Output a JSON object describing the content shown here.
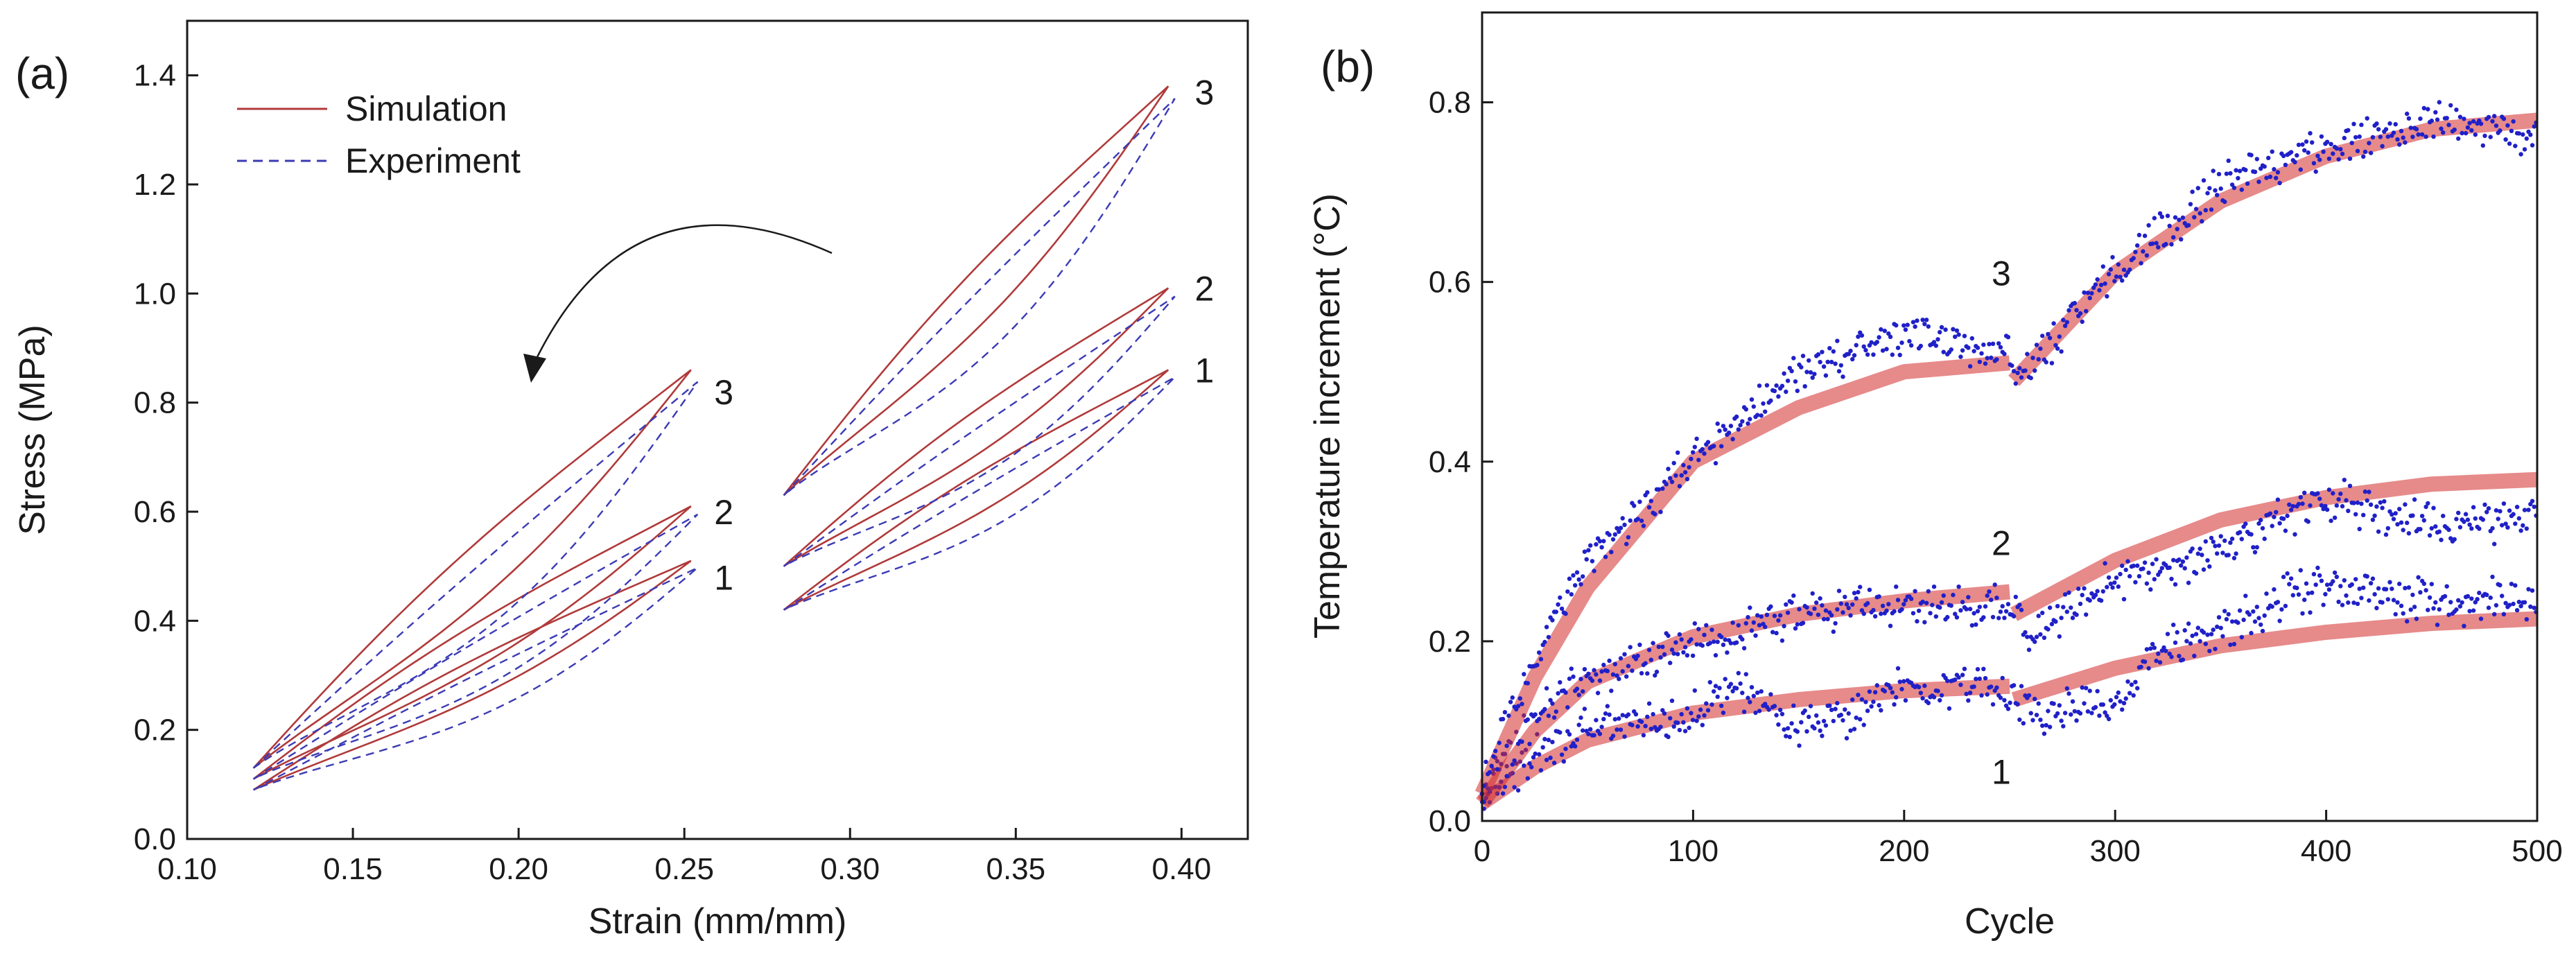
{
  "chart_data": [
    {
      "panel": "(a)",
      "type": "line",
      "xlabel": "Strain (mm/mm)",
      "ylabel": "Stress (MPa)",
      "xlim": [
        0.1,
        0.42
      ],
      "ylim": [
        0.0,
        1.5
      ],
      "xticks": [
        "0.10",
        "0.15",
        "0.20",
        "0.25",
        "0.30",
        "0.35",
        "0.40"
      ],
      "yticks": [
        "0.0",
        "0.2",
        "0.4",
        "0.6",
        "0.8",
        "1.0",
        "1.2",
        "1.4"
      ],
      "legend": {
        "placement": "top-left",
        "entries": [
          "Simulation",
          "Experiment"
        ]
      },
      "colors": {
        "Simulation": "#b03a3a",
        "Experiment": "#3b3bb5"
      },
      "annotations": [
        {
          "text": "3",
          "x": 0.259,
          "y": 0.82
        },
        {
          "text": "2",
          "x": 0.259,
          "y": 0.6
        },
        {
          "text": "1",
          "x": 0.259,
          "y": 0.48
        },
        {
          "text": "3",
          "x": 0.404,
          "y": 1.37
        },
        {
          "text": "2",
          "x": 0.404,
          "y": 1.01
        },
        {
          "text": "1",
          "x": 0.404,
          "y": 0.86
        }
      ],
      "loops": [
        {
          "label": "1",
          "group": "short",
          "x_min": 0.12,
          "x_max": 0.252,
          "y_min": 0.09,
          "y_max": 0.51
        },
        {
          "label": "2",
          "group": "short",
          "x_min": 0.12,
          "x_max": 0.252,
          "y_min": 0.11,
          "y_max": 0.61
        },
        {
          "label": "3",
          "group": "short",
          "x_min": 0.12,
          "x_max": 0.252,
          "y_min": 0.13,
          "y_max": 0.86
        },
        {
          "label": "1",
          "group": "long",
          "x_min": 0.28,
          "x_max": 0.396,
          "y_min": 0.42,
          "y_max": 0.86
        },
        {
          "label": "2",
          "group": "long",
          "x_min": 0.28,
          "x_max": 0.396,
          "y_min": 0.5,
          "y_max": 1.01
        },
        {
          "label": "3",
          "group": "long",
          "x_min": 0.28,
          "x_max": 0.396,
          "y_min": 0.63,
          "y_max": 1.38
        }
      ]
    },
    {
      "panel": "(b)",
      "type": "scatter",
      "xlabel": "Cycle",
      "ylabel": "Temperature increment (°C)",
      "xlim": [
        0,
        500
      ],
      "ylim": [
        0.0,
        0.9
      ],
      "xticks": [
        "0",
        "100",
        "200",
        "300",
        "400",
        "500"
      ],
      "yticks": [
        "0.0",
        "0.2",
        "0.4",
        "0.6",
        "0.8"
      ],
      "colors": {
        "fit": "#d42a2a",
        "data": "#2020c8"
      },
      "annotations": [
        {
          "text": "3",
          "x": 250,
          "y": 0.61
        },
        {
          "text": "2",
          "x": 250,
          "y": 0.31
        },
        {
          "text": "1",
          "x": 250,
          "y": 0.055
        }
      ],
      "series": [
        {
          "label": "1",
          "fit": [
            [
              0,
              0.02
            ],
            [
              25,
              0.06
            ],
            [
              50,
              0.09
            ],
            [
              100,
              0.12
            ],
            [
              150,
              0.135
            ],
            [
              200,
              0.145
            ],
            [
              250,
              0.15
            ],
            [
              252,
              0.135
            ],
            [
              300,
              0.17
            ],
            [
              350,
              0.195
            ],
            [
              400,
              0.21
            ],
            [
              450,
              0.22
            ],
            [
              500,
              0.225
            ]
          ],
          "data": [
            [
              0,
              0.03
            ],
            [
              25,
              0.07
            ],
            [
              50,
              0.1
            ],
            [
              100,
              0.12
            ],
            [
              120,
              0.15
            ],
            [
              150,
              0.1
            ],
            [
              180,
              0.12
            ],
            [
              200,
              0.15
            ],
            [
              230,
              0.15
            ],
            [
              250,
              0.14
            ],
            [
              260,
              0.12
            ],
            [
              300,
              0.13
            ],
            [
              320,
              0.19
            ],
            [
              350,
              0.21
            ],
            [
              380,
              0.25
            ],
            [
              400,
              0.26
            ],
            [
              430,
              0.25
            ],
            [
              460,
              0.24
            ],
            [
              500,
              0.25
            ]
          ]
        },
        {
          "label": "2",
          "fit": [
            [
              0,
              0.02
            ],
            [
              25,
              0.1
            ],
            [
              50,
              0.155
            ],
            [
              100,
              0.205
            ],
            [
              150,
              0.23
            ],
            [
              200,
              0.245
            ],
            [
              250,
              0.255
            ],
            [
              252,
              0.23
            ],
            [
              300,
              0.29
            ],
            [
              350,
              0.335
            ],
            [
              400,
              0.36
            ],
            [
              450,
              0.375
            ],
            [
              500,
              0.38
            ]
          ],
          "data": [
            [
              0,
              0.03
            ],
            [
              25,
              0.12
            ],
            [
              50,
              0.16
            ],
            [
              100,
              0.2
            ],
            [
              150,
              0.23
            ],
            [
              200,
              0.24
            ],
            [
              250,
              0.24
            ],
            [
              260,
              0.21
            ],
            [
              300,
              0.27
            ],
            [
              350,
              0.3
            ],
            [
              380,
              0.34
            ],
            [
              400,
              0.36
            ],
            [
              430,
              0.34
            ],
            [
              460,
              0.33
            ],
            [
              500,
              0.34
            ]
          ]
        },
        {
          "label": "3",
          "fit": [
            [
              0,
              0.03
            ],
            [
              25,
              0.16
            ],
            [
              50,
              0.26
            ],
            [
              100,
              0.4
            ],
            [
              150,
              0.46
            ],
            [
              200,
              0.5
            ],
            [
              250,
              0.51
            ],
            [
              252,
              0.49
            ],
            [
              300,
              0.61
            ],
            [
              350,
              0.69
            ],
            [
              400,
              0.74
            ],
            [
              450,
              0.77
            ],
            [
              500,
              0.78
            ]
          ],
          "data": [
            [
              0,
              0.04
            ],
            [
              25,
              0.18
            ],
            [
              50,
              0.29
            ],
            [
              100,
              0.4
            ],
            [
              150,
              0.5
            ],
            [
              200,
              0.54
            ],
            [
              225,
              0.53
            ],
            [
              250,
              0.52
            ],
            [
              255,
              0.49
            ],
            [
              300,
              0.61
            ],
            [
              350,
              0.71
            ],
            [
              400,
              0.75
            ],
            [
              450,
              0.78
            ],
            [
              500,
              0.76
            ]
          ]
        }
      ]
    }
  ]
}
